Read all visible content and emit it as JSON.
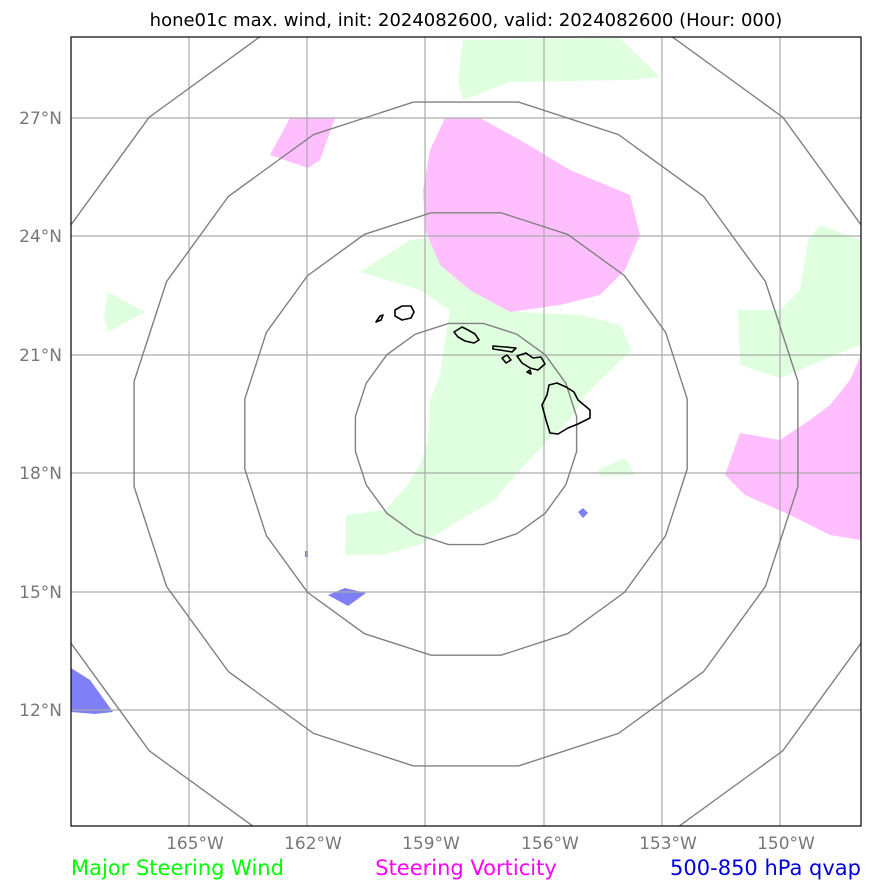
{
  "title": "hone01c max. wind, init: 2024082600, valid: 2024082600 (Hour: 000)",
  "lat_labels": [
    "27°N",
    "24°N",
    "21°N",
    "18°N",
    "15°N",
    "12°N"
  ],
  "lon_labels": [
    "165°W",
    "162°W",
    "159°W",
    "156°W",
    "153°W",
    "150°W"
  ],
  "legend": [
    {
      "label": "Major Steering Wind",
      "color": "#00ff00"
    },
    {
      "label": "Steering Vorticity",
      "color": "#ff00ff"
    },
    {
      "label": "500-850 hPa qvap",
      "color": "#0000dd"
    }
  ],
  "colors": {
    "wind_fill": "#dfffdf",
    "vorticity_fill": "#ffbfff",
    "qvap_fill": "#7f7ff7",
    "grid": "#aaaaaa",
    "rings": "#808080",
    "coast": "#000000"
  }
}
